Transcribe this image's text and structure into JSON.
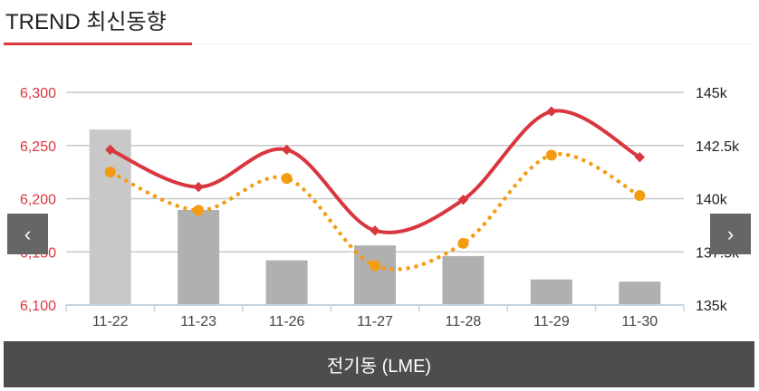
{
  "header": {
    "title": "TREND 최신동향"
  },
  "nav": {
    "prev": "‹",
    "next": "›"
  },
  "footer": {
    "label": "전기동 (LME)"
  },
  "chart_data": {
    "type": "bar+line",
    "categories": [
      "11-22",
      "11-23",
      "11-26",
      "11-27",
      "11-28",
      "11-29",
      "11-30"
    ],
    "left_axis": {
      "ylim": [
        6100,
        6300
      ],
      "ticks": [
        "6,100",
        "6,150",
        "6,200",
        "6,250",
        "6,300"
      ],
      "color": "#d9363e"
    },
    "right_axis": {
      "ylim": [
        135000,
        145000
      ],
      "ticks": [
        "135k",
        "137.5k",
        "140k",
        "142.5k",
        "145k"
      ]
    },
    "series": [
      {
        "type": "bar",
        "axis": "right",
        "values": [
          143250,
          139470,
          137100,
          137800,
          137300,
          136200,
          136100
        ],
        "color": "#b0b0b0",
        "highlight_color": "#c8c8c8"
      },
      {
        "type": "line",
        "axis": "left",
        "style": "solid",
        "marker": "diamond",
        "values": [
          6246,
          6211,
          6246,
          6170,
          6199,
          6282,
          6239
        ],
        "color": "#d9363e"
      },
      {
        "type": "line",
        "axis": "left",
        "style": "dotted",
        "marker": "circle",
        "values": [
          6225,
          6189,
          6219,
          6137,
          6158,
          6241,
          6203
        ],
        "color": "#f39c12"
      }
    ],
    "grid": true
  }
}
